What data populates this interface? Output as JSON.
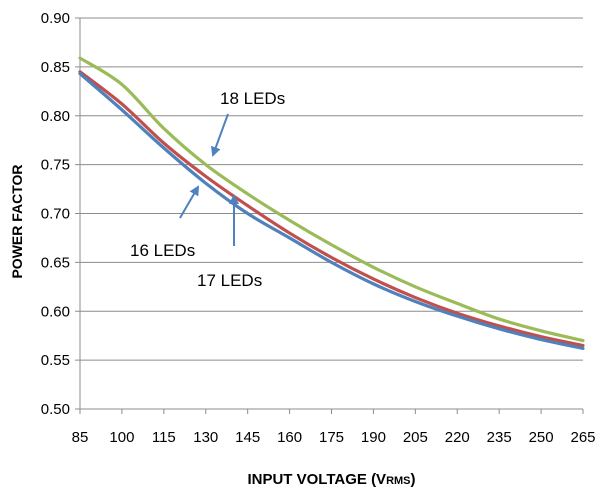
{
  "chart_data": {
    "type": "line",
    "title": "",
    "xlabel": "INPUT VOLTAGE (V",
    "xlabel_sub": "RMS",
    "xlabel_end": ")",
    "ylabel": "POWER FACTOR",
    "x_ticks": [
      "85",
      "100",
      "115",
      "130",
      "145",
      "160",
      "175",
      "190",
      "205",
      "220",
      "235",
      "250",
      "265"
    ],
    "y_ticks": [
      "0.50",
      "0.55",
      "0.60",
      "0.65",
      "0.70",
      "0.75",
      "0.80",
      "0.85",
      "0.90"
    ],
    "xlim": [
      85,
      265
    ],
    "ylim": [
      0.5,
      0.9
    ],
    "grid": "horizontal",
    "x": [
      85,
      100,
      115,
      130,
      145,
      160,
      175,
      190,
      205,
      220,
      235,
      250,
      265
    ],
    "series": [
      {
        "color": "#9BBB59",
        "values": [
          0.859,
          0.832,
          0.787,
          0.75,
          0.72,
          0.693,
          0.668,
          0.645,
          0.625,
          0.608,
          0.592,
          0.58,
          0.57
        ]
      },
      {
        "color": "#C0504D",
        "values": [
          0.845,
          0.812,
          0.772,
          0.738,
          0.708,
          0.68,
          0.655,
          0.633,
          0.614,
          0.598,
          0.585,
          0.574,
          0.565
        ]
      },
      {
        "color": "#4F81BD",
        "values": [
          0.843,
          0.806,
          0.767,
          0.731,
          0.7,
          0.675,
          0.65,
          0.628,
          0.61,
          0.595,
          0.582,
          0.571,
          0.562
        ]
      }
    ],
    "annotations": [
      {
        "text": "18 LEDs",
        "target": [
          131,
          0.754
        ]
      },
      {
        "text": "16 LEDs",
        "target": [
          133,
          0.735
        ]
      },
      {
        "text": "17 LEDs",
        "target": [
          140,
          0.715
        ]
      }
    ]
  }
}
